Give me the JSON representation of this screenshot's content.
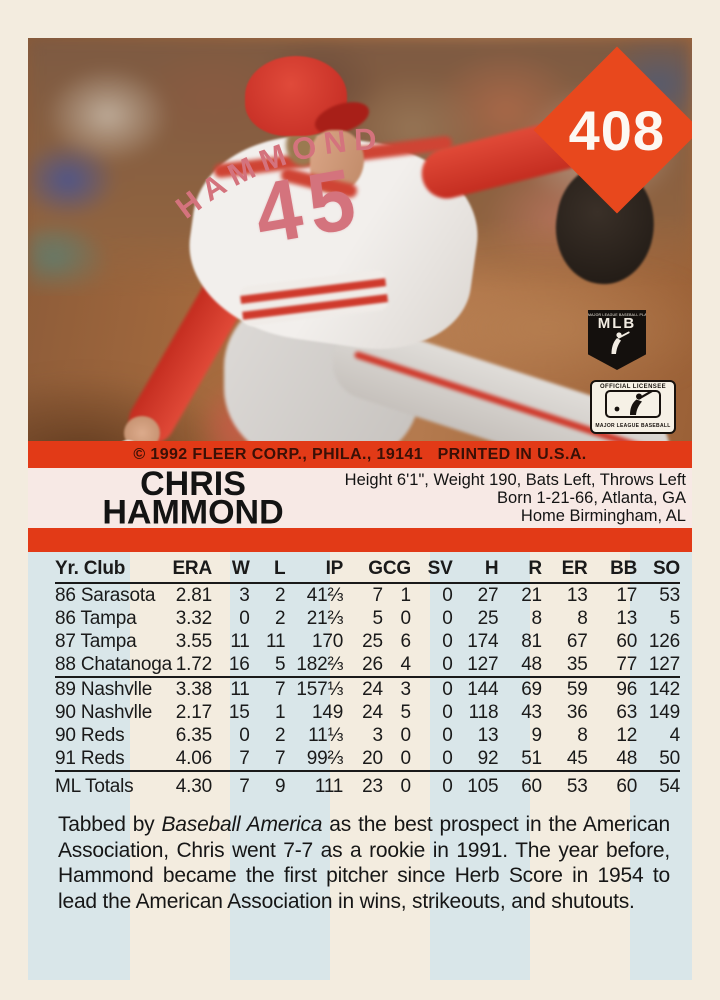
{
  "card": {
    "number": "408",
    "copyright": "© 1992 FLEER CORP., PHILA., 19141   PRINTED IN U.S.A.",
    "player": {
      "first_name": "CHRIS",
      "last_name": "HAMMOND",
      "jersey_name": "HAMMOND",
      "jersey_number": "45"
    },
    "bio": {
      "line1": "Height 6'1\", Weight 190, Bats Left, Throws Left",
      "line2": "Born 1-21-66, Atlanta, GA",
      "line3": "Home Birmingham, AL"
    },
    "logos": {
      "mlbpa_micro": "MAJOR LEAGUE BASEBALL PLAYERS",
      "mlbpa_label": "MLB",
      "licensee_top": "OFFICIAL LICENSEE",
      "licensee_bottom": "MAJOR LEAGUE BASEBALL"
    },
    "stats": {
      "columns": [
        "Yr. Club",
        "ERA",
        "W",
        "L",
        "IP",
        "G",
        "CG",
        "SV",
        "H",
        "R",
        "ER",
        "BB",
        "SO"
      ],
      "rows": [
        [
          "86 Sarasota",
          "2.81",
          "3",
          "2",
          "41⅔",
          "7",
          "1",
          "0",
          "27",
          "21",
          "13",
          "17",
          "53"
        ],
        [
          "86 Tampa",
          "3.32",
          "0",
          "2",
          "21⅔",
          "5",
          "0",
          "0",
          "25",
          "8",
          "8",
          "13",
          "5"
        ],
        [
          "87 Tampa",
          "3.55",
          "11",
          "11",
          "170",
          "25",
          "6",
          "0",
          "174",
          "81",
          "67",
          "60",
          "126"
        ],
        [
          "88 Chatanoga",
          "1.72",
          "16",
          "5",
          "182⅔",
          "26",
          "4",
          "0",
          "127",
          "48",
          "35",
          "77",
          "127"
        ],
        [
          "89 Nashvlle",
          "3.38",
          "11",
          "7",
          "157⅓",
          "24",
          "3",
          "0",
          "144",
          "69",
          "59",
          "96",
          "142"
        ],
        [
          "90 Nashvlle",
          "2.17",
          "15",
          "1",
          "149",
          "24",
          "5",
          "0",
          "118",
          "43",
          "36",
          "63",
          "149"
        ],
        [
          "90 Reds",
          "6.35",
          "0",
          "2",
          "11⅓",
          "3",
          "0",
          "0",
          "13",
          "9",
          "8",
          "12",
          "4"
        ],
        [
          "91 Reds",
          "4.06",
          "7",
          "7",
          "99⅔",
          "20",
          "0",
          "0",
          "92",
          "51",
          "45",
          "48",
          "50"
        ]
      ],
      "totals": [
        "ML Totals",
        "4.30",
        "7",
        "9",
        "111",
        "23",
        "0",
        "0",
        "105",
        "60",
        "53",
        "60",
        "54"
      ]
    },
    "blurb_segments": [
      {
        "text": "Tabbed by ",
        "italic": false
      },
      {
        "text": "Baseball America",
        "italic": true
      },
      {
        "text": " as the best prospect in the American Association, Chris went 7-7 as a rookie in 1991. The year before, Hammond became the first pitcher since Herb Score in 1954 to lead the American Association in wins, strikeouts, and shutouts.",
        "italic": false
      }
    ]
  },
  "colors": {
    "accent_red": "#e23a17",
    "diamond_orange": "#e8481d",
    "stripe_blue": "#d9e6e9",
    "card_cream": "#f3ecdf",
    "name_band_pink": "#f7e9e5",
    "jersey_pink": "#d4737d"
  }
}
